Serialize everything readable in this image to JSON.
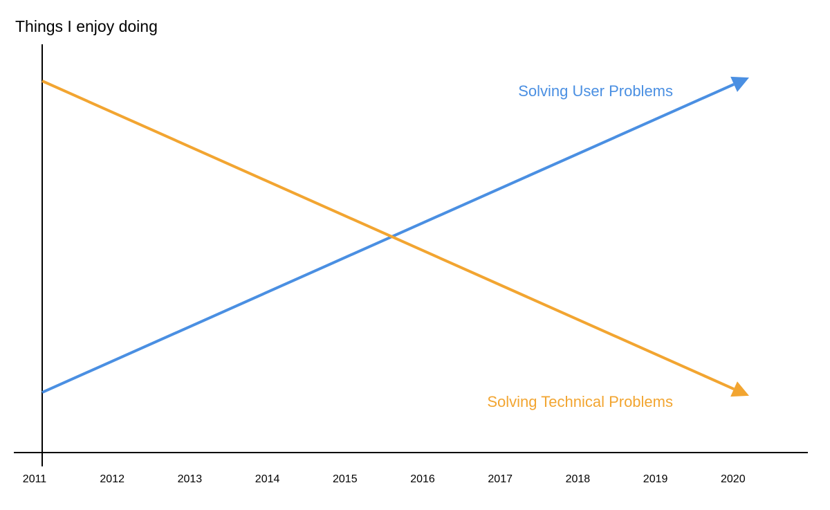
{
  "chart_data": {
    "type": "line",
    "ylabel": "Things I enjoy doing",
    "xlabel": "",
    "x": [
      2011,
      2012,
      2013,
      2014,
      2015,
      2016,
      2017,
      2018,
      2019,
      2020
    ],
    "xlim": [
      2011,
      2020
    ],
    "ylim": [
      0,
      10
    ],
    "grid": false,
    "legend": "inline labels near line ends",
    "series": [
      {
        "name": "Solving User Problems",
        "color": "#4A8FE2",
        "x": [
          2011,
          2020
        ],
        "values": [
          1,
          9.5
        ],
        "arrow_end": true
      },
      {
        "name": "Solving Technical Problems",
        "color": "#F2A531",
        "x": [
          2011,
          2020
        ],
        "values": [
          9.5,
          1
        ],
        "arrow_end": true
      }
    ]
  }
}
